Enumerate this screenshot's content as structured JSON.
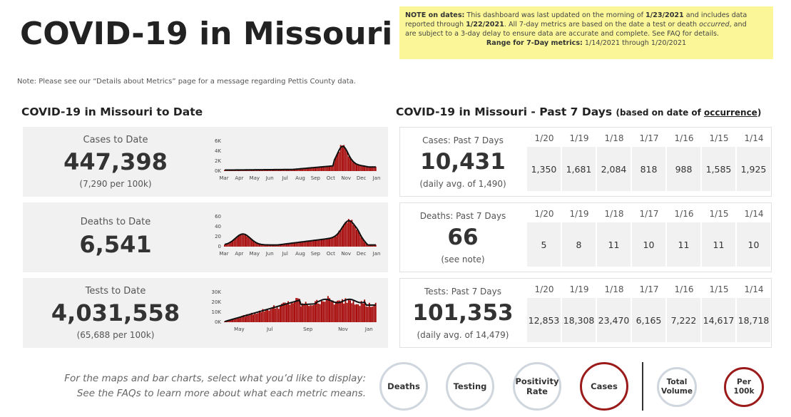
{
  "header": {
    "title": "COVID-19 in Missouri",
    "note_lines": [
      {
        "prefix": "NOTE on dates:",
        "text": " This dashboard was last updated on the morning of ",
        "b1": "1/23/2021",
        "text2": " and includes data"
      },
      {
        "text": "reported through ",
        "b1": "1/22/2021",
        "text2": ". All 7-day metrics are based on the date a test or death ",
        "i1": "occurred",
        "text3": ", and"
      },
      {
        "text": "are subject to a 3-day delay to ensure data are accurate and complete. See FAQ for details."
      }
    ],
    "range_label": "Range for 7-Day metrics:",
    "range_value": " 1/14/2021 through 1/20/2021",
    "pettis_note": "Note: Please see our “Details about Metrics” page for a message regarding Pettis County data."
  },
  "to_date": {
    "section_title": "COVID-19 in Missouri to Date",
    "cards": [
      {
        "label": "Cases to Date",
        "value": "447,398",
        "sub": "(7,290 per 100k)",
        "y_ticks": [
          "6K",
          "4K",
          "2K",
          "0K"
        ],
        "x_ticks": [
          "Mar",
          "Apr",
          "May",
          "Jun",
          "Jul",
          "Aug",
          "Sep",
          "Oct",
          "Nov",
          "Dec",
          "Jan"
        ]
      },
      {
        "label": "Deaths to Date",
        "value": "6,541",
        "sub": "",
        "y_ticks": [
          "60",
          "40",
          "20",
          "0"
        ],
        "x_ticks": [
          "Mar",
          "Apr",
          "May",
          "Jun",
          "Jul",
          "Aug",
          "Sep",
          "Oct",
          "Nov",
          "Dec",
          "Jan"
        ]
      },
      {
        "label": "Tests to Date",
        "value": "4,031,558",
        "sub": "(65,688 per 100k)",
        "y_ticks": [
          "30K",
          "20K",
          "10K",
          "0K"
        ],
        "x_ticks": [
          "May",
          "Jul",
          "Sep",
          "Nov",
          "Jan"
        ]
      }
    ]
  },
  "past7": {
    "section_title": "COVID-19 in Missouri - Past 7 Days",
    "section_suffix_pre": "(based on date of ",
    "section_suffix_link": "occurrence",
    "section_suffix_post": ")",
    "days": [
      "1/20",
      "1/19",
      "1/18",
      "1/17",
      "1/16",
      "1/15",
      "1/14"
    ],
    "rows": [
      {
        "label": "Cases: Past 7 Days",
        "value": "10,431",
        "sub": "(daily avg. of 1,490)",
        "daily": [
          "1,350",
          "1,681",
          "2,084",
          "818",
          "988",
          "1,585",
          "1,925"
        ]
      },
      {
        "label": "Deaths: Past 7 Days",
        "value": "66",
        "sub": "(see note)",
        "daily": [
          "5",
          "8",
          "11",
          "10",
          "11",
          "11",
          "10"
        ]
      },
      {
        "label": "Tests: Past 7 Days",
        "value": "101,353",
        "sub": "(daily avg. of 14,479)",
        "daily": [
          "12,853",
          "18,308",
          "23,470",
          "6,165",
          "7,222",
          "14,617",
          "18,718"
        ]
      }
    ]
  },
  "footer": {
    "help_line1": "For the maps and bar charts, select what you’d like to display:",
    "help_line2": "See the FAQs to learn more about what each metric means.",
    "metric_buttons": [
      "Deaths",
      "Testing",
      "Positivity Rate",
      "Cases"
    ],
    "selected_metric": "Cases",
    "scale_buttons": [
      "Total Volume",
      "Per 100k"
    ],
    "selected_scale": "Per 100k"
  },
  "colors": {
    "bar": "#a50000",
    "line": "#111111",
    "note_bg": "#fbf799",
    "selected_ring": "#9b1b1b",
    "unselected_ring": "#cfd6de"
  }
}
